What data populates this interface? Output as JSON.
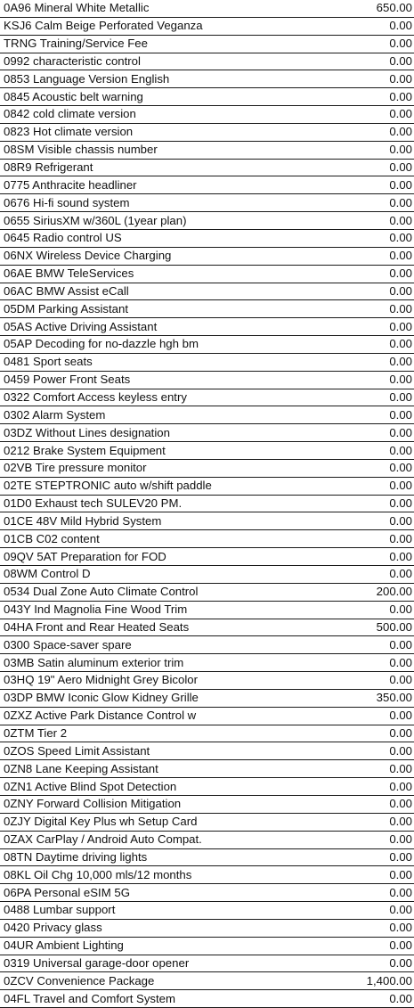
{
  "options": [
    {
      "description": "0A96 Mineral White Metallic",
      "price": "650.00"
    },
    {
      "description": "KSJ6 Calm Beige Perforated Veganza",
      "price": "0.00"
    },
    {
      "description": "TRNG Training/Service Fee",
      "price": "0.00"
    },
    {
      "description": "0992 characteristic control",
      "price": "0.00"
    },
    {
      "description": "0853 Language Version English",
      "price": "0.00"
    },
    {
      "description": "0845 Acoustic belt warning",
      "price": "0.00"
    },
    {
      "description": "0842 cold climate version",
      "price": "0.00"
    },
    {
      "description": "0823 Hot climate version",
      "price": "0.00"
    },
    {
      "description": "08SM Visible chassis number",
      "price": "0.00"
    },
    {
      "description": "08R9 Refrigerant",
      "price": "0.00"
    },
    {
      "description": "0775 Anthracite headliner",
      "price": "0.00"
    },
    {
      "description": "0676 Hi-fi sound system",
      "price": "0.00"
    },
    {
      "description": "0655 SiriusXM w/360L (1year plan)",
      "price": "0.00"
    },
    {
      "description": "0645 Radio control US",
      "price": "0.00"
    },
    {
      "description": "06NX Wireless Device Charging",
      "price": "0.00"
    },
    {
      "description": "06AE BMW TeleServices",
      "price": "0.00"
    },
    {
      "description": "06AC BMW Assist eCall",
      "price": "0.00"
    },
    {
      "description": "05DM Parking Assistant",
      "price": "0.00"
    },
    {
      "description": "05AS Active Driving Assistant",
      "price": "0.00"
    },
    {
      "description": "05AP Decoding for no-dazzle hgh bm",
      "price": "0.00"
    },
    {
      "description": "0481 Sport seats",
      "price": "0.00"
    },
    {
      "description": "0459 Power Front Seats",
      "price": "0.00"
    },
    {
      "description": "0322 Comfort Access keyless entry",
      "price": "0.00"
    },
    {
      "description": "0302 Alarm System",
      "price": "0.00"
    },
    {
      "description": "03DZ Without Lines designation",
      "price": "0.00"
    },
    {
      "description": "0212 Brake System Equipment",
      "price": "0.00"
    },
    {
      "description": "02VB Tire pressure monitor",
      "price": "0.00"
    },
    {
      "description": "02TE STEPTRONIC auto w/shift paddle",
      "price": "0.00"
    },
    {
      "description": "01D0 Exhaust tech SULEV20 PM.",
      "price": "0.00"
    },
    {
      "description": "01CE 48V Mild Hybrid System",
      "price": "0.00"
    },
    {
      "description": "01CB C02 content",
      "price": "0.00"
    },
    {
      "description": "09QV 5AT Preparation for FOD",
      "price": "0.00"
    },
    {
      "description": "08WM Control D",
      "price": "0.00"
    },
    {
      "description": "0534 Dual Zone Auto Climate Control",
      "price": "200.00"
    },
    {
      "description": "043Y Ind Magnolia Fine Wood Trim",
      "price": "0.00"
    },
    {
      "description": "04HA Front and Rear Heated Seats",
      "price": "500.00"
    },
    {
      "description": "0300 Space-saver spare",
      "price": "0.00"
    },
    {
      "description": "03MB Satin aluminum exterior trim",
      "price": "0.00"
    },
    {
      "description": "03HQ 19\" Aero Midnight Grey Bicolor",
      "price": "0.00"
    },
    {
      "description": "03DP BMW Iconic Glow Kidney Grille",
      "price": "350.00"
    },
    {
      "description": "0ZXZ Active Park Distance Control w",
      "price": "0.00"
    },
    {
      "description": "0ZTM Tier 2",
      "price": "0.00"
    },
    {
      "description": "0ZOS Speed Limit Assistant",
      "price": "0.00"
    },
    {
      "description": "0ZN8 Lane Keeping Assistant",
      "price": "0.00"
    },
    {
      "description": "0ZN1 Active Blind Spot Detection",
      "price": "0.00"
    },
    {
      "description": "0ZNY Forward Collision Mitigation",
      "price": "0.00"
    },
    {
      "description": "0ZJY Digital Key Plus wh Setup Card",
      "price": "0.00"
    },
    {
      "description": "0ZAX CarPlay / Android Auto Compat.",
      "price": "0.00"
    },
    {
      "description": "08TN Daytime driving lights",
      "price": "0.00"
    },
    {
      "description": "08KL Oil Chg 10,000 mls/12 months",
      "price": "0.00"
    },
    {
      "description": "06PA Personal eSIM 5G",
      "price": "0.00"
    },
    {
      "description": "0488 Lumbar support",
      "price": "0.00"
    },
    {
      "description": "0420 Privacy glass",
      "price": "0.00"
    },
    {
      "description": "04UR Ambient Lighting",
      "price": "0.00"
    },
    {
      "description": "0319 Universal garage-door opener",
      "price": "0.00"
    },
    {
      "description": "0ZCV Convenience Package",
      "price": "1,400.00"
    },
    {
      "description": "04FL Travel and Comfort System",
      "price": "0.00"
    }
  ]
}
